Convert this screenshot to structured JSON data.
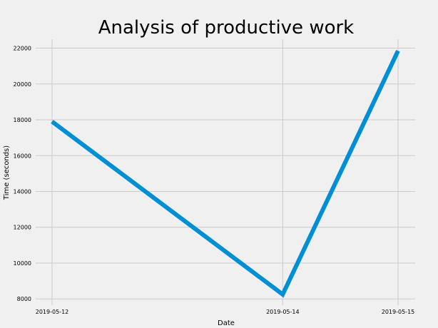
{
  "chart_data": {
    "type": "line",
    "title": "Analysis of productive work",
    "xlabel": "Date",
    "ylabel": "Time (seconds)",
    "x": [
      "2019-05-12",
      "2019-05-14",
      "2019-05-15"
    ],
    "series": [
      {
        "values": [
          17900,
          8250,
          21850
        ],
        "color": "#008fd5"
      }
    ],
    "ylim": [
      7650,
      22500
    ],
    "yticks": [
      8000,
      10000,
      12000,
      14000,
      16000,
      18000,
      20000,
      22000
    ],
    "grid": true,
    "legend": "none",
    "background_color": "#f0f0f0",
    "grid_color": "#cbcbcb"
  }
}
